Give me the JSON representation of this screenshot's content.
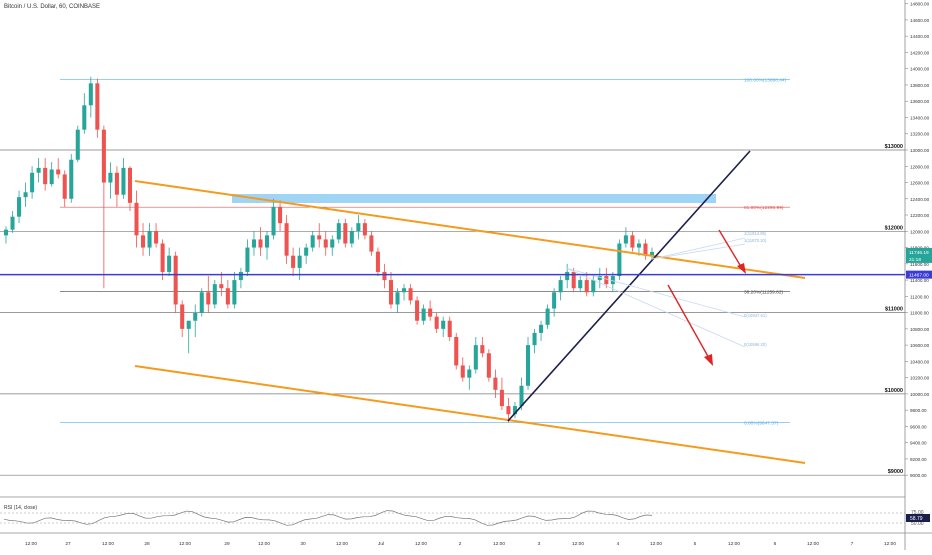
{
  "header": {
    "title": "Bitcoin / U.S. Dollar, 60, COINBASE"
  },
  "chart_data": {
    "type": "candlestick",
    "title": "Bitcoin / U.S. Dollar, 60, COINBASE",
    "ylim": [
      8800,
      14900
    ],
    "y_ticks": [
      9000,
      9200,
      9400,
      9600,
      9800,
      10000,
      10200,
      10400,
      10600,
      10800,
      11000,
      11200,
      11400,
      11600,
      11800,
      12000,
      12200,
      12400,
      12600,
      12800,
      13000,
      13200,
      13400,
      13600,
      13800,
      14000,
      14200,
      14400,
      14600,
      14800
    ],
    "x_ticks": [
      "12:00",
      "27",
      "12:00",
      "28",
      "12:00",
      "29",
      "12:00",
      "30",
      "12:00",
      "Jul",
      "12:00",
      "2",
      "12:00",
      "3",
      "12:00",
      "4",
      "12:00",
      "5",
      "12:00",
      "6",
      "12:00",
      "7",
      "12:00"
    ],
    "horizontal_levels": [
      {
        "label": "$13000",
        "value": 13000
      },
      {
        "label": "$12000",
        "value": 12000
      },
      {
        "label": "$11000",
        "value": 11000
      },
      {
        "label": "$10000",
        "value": 10000
      },
      {
        "label": "$9000",
        "value": 9000
      }
    ],
    "fib_levels": [
      {
        "label": "100.00%(13868.44)",
        "value": 13868.44
      },
      {
        "label": "61.80%(12295.99)",
        "value": 12295.99
      },
      {
        "label": "38.20%(11259.82)",
        "value": 11259.82
      },
      {
        "label": "0.00%(9647.37)",
        "value": 9647.37
      }
    ],
    "small_labels": [
      "1(11914.85)",
      "1(11870.20)",
      "0(10947.61)",
      "0(10596.20)"
    ],
    "price_tags": [
      {
        "label": "11746.19",
        "value": 11746.19
      },
      {
        "label": "21:18",
        "value": 11660
      },
      {
        "label": "11467.00",
        "value": 11467.0
      }
    ],
    "candles": [
      [
        11950,
        12060,
        11850,
        12020
      ],
      [
        12020,
        12250,
        11980,
        12180
      ],
      [
        12180,
        12500,
        12100,
        12420
      ],
      [
        12420,
        12600,
        12300,
        12480
      ],
      [
        12480,
        12800,
        12400,
        12720
      ],
      [
        12720,
        12900,
        12600,
        12780
      ],
      [
        12780,
        12900,
        12500,
        12580
      ],
      [
        12580,
        12850,
        12550,
        12760
      ],
      [
        12760,
        12900,
        12650,
        12700
      ],
      [
        12700,
        12750,
        12300,
        12400
      ],
      [
        12400,
        12950,
        12350,
        12880
      ],
      [
        12880,
        13300,
        12850,
        13250
      ],
      [
        13250,
        13700,
        13200,
        13550
      ],
      [
        13550,
        13900,
        13400,
        13820
      ],
      [
        13820,
        13880,
        13150,
        13250
      ],
      [
        13250,
        13300,
        11300,
        12600
      ],
      [
        12600,
        12850,
        12400,
        12720
      ],
      [
        12720,
        12800,
        12300,
        12450
      ],
      [
        12450,
        12900,
        12400,
        12780
      ],
      [
        12780,
        12800,
        12250,
        12350
      ],
      [
        12350,
        12500,
        11800,
        11950
      ],
      [
        11950,
        12100,
        11700,
        11800
      ],
      [
        11800,
        12100,
        11700,
        12000
      ],
      [
        12000,
        12100,
        11800,
        11850
      ],
      [
        11850,
        11900,
        11400,
        11500
      ],
      [
        11500,
        11800,
        11450,
        11700
      ],
      [
        11700,
        11750,
        11000,
        11100
      ],
      [
        11100,
        11150,
        10700,
        10800
      ],
      [
        10800,
        10900,
        10500,
        10900
      ],
      [
        10900,
        11100,
        10700,
        11000
      ],
      [
        11000,
        11300,
        10950,
        11250
      ],
      [
        11250,
        11450,
        11000,
        11100
      ],
      [
        11100,
        11400,
        11050,
        11350
      ],
      [
        11350,
        11500,
        11200,
        11300
      ],
      [
        11300,
        11400,
        11050,
        11100
      ],
      [
        11100,
        11500,
        11050,
        11400
      ],
      [
        11400,
        11550,
        11300,
        11500
      ],
      [
        11500,
        11900,
        11450,
        11800
      ],
      [
        11800,
        12000,
        11700,
        11900
      ],
      [
        11900,
        12050,
        11700,
        11800
      ],
      [
        11800,
        12000,
        11650,
        11950
      ],
      [
        11950,
        12400,
        11900,
        12300
      ],
      [
        12300,
        12380,
        12000,
        12100
      ],
      [
        12100,
        12200,
        11600,
        11700
      ],
      [
        11700,
        11800,
        11450,
        11550
      ],
      [
        11550,
        11800,
        11400,
        11700
      ],
      [
        11700,
        11850,
        11600,
        11800
      ],
      [
        11800,
        12000,
        11750,
        11950
      ],
      [
        11950,
        12100,
        11800,
        11900
      ],
      [
        11900,
        12000,
        11700,
        11800
      ],
      [
        11800,
        11950,
        11700,
        11900
      ],
      [
        11900,
        12150,
        11850,
        12100
      ],
      [
        12100,
        12150,
        11800,
        11850
      ],
      [
        11850,
        12050,
        11800,
        12000
      ],
      [
        12000,
        12200,
        11900,
        12100
      ],
      [
        12100,
        12150,
        11900,
        11950
      ],
      [
        11950,
        12000,
        11700,
        11750
      ],
      [
        11750,
        11800,
        11450,
        11500
      ],
      [
        11500,
        11600,
        11300,
        11400
      ],
      [
        11400,
        11500,
        11050,
        11100
      ],
      [
        11100,
        11300,
        11000,
        11250
      ],
      [
        11250,
        11350,
        11150,
        11300
      ],
      [
        11300,
        11350,
        11100,
        11150
      ],
      [
        11150,
        11200,
        10850,
        10900
      ],
      [
        10900,
        11100,
        10850,
        11050
      ],
      [
        11050,
        11150,
        10900,
        10950
      ],
      [
        10950,
        11000,
        10750,
        10800
      ],
      [
        10800,
        10950,
        10700,
        10900
      ],
      [
        10900,
        10950,
        10650,
        10700
      ],
      [
        10700,
        10750,
        10300,
        10350
      ],
      [
        10350,
        10450,
        10150,
        10200
      ],
      [
        10200,
        10350,
        10050,
        10300
      ],
      [
        10300,
        10700,
        10250,
        10600
      ],
      [
        10600,
        10700,
        10450,
        10500
      ],
      [
        10500,
        10550,
        10150,
        10200
      ],
      [
        10200,
        10300,
        9950,
        10050
      ],
      [
        10050,
        10200,
        9800,
        9850
      ],
      [
        9850,
        9950,
        9650,
        9750
      ],
      [
        9750,
        9900,
        9700,
        9850
      ],
      [
        9850,
        10200,
        9800,
        10100
      ],
      [
        10100,
        10700,
        10050,
        10600
      ],
      [
        10600,
        10800,
        10500,
        10750
      ],
      [
        10750,
        10900,
        10650,
        10850
      ],
      [
        10850,
        11100,
        10800,
        11050
      ],
      [
        11050,
        11300,
        10950,
        11250
      ],
      [
        11250,
        11450,
        11150,
        11400
      ],
      [
        11400,
        11600,
        11300,
        11500
      ],
      [
        11500,
        11550,
        11250,
        11300
      ],
      [
        11300,
        11450,
        11250,
        11400
      ],
      [
        11400,
        11500,
        11200,
        11250
      ],
      [
        11250,
        11450,
        11200,
        11400
      ],
      [
        11400,
        11550,
        11300,
        11450
      ],
      [
        11450,
        11550,
        11300,
        11350
      ],
      [
        11350,
        11500,
        11250,
        11450
      ],
      [
        11450,
        11900,
        11400,
        11850
      ],
      [
        11850,
        12050,
        11800,
        11950
      ],
      [
        11950,
        12000,
        11750,
        11800
      ],
      [
        11800,
        11900,
        11700,
        11850
      ],
      [
        11850,
        11900,
        11650,
        11700
      ],
      [
        11700,
        11800,
        11650,
        11746.19
      ]
    ],
    "indicator": {
      "label": "RSI (14, close)",
      "values": [
        "75.00",
        "50.00"
      ],
      "current": "58.79"
    }
  }
}
